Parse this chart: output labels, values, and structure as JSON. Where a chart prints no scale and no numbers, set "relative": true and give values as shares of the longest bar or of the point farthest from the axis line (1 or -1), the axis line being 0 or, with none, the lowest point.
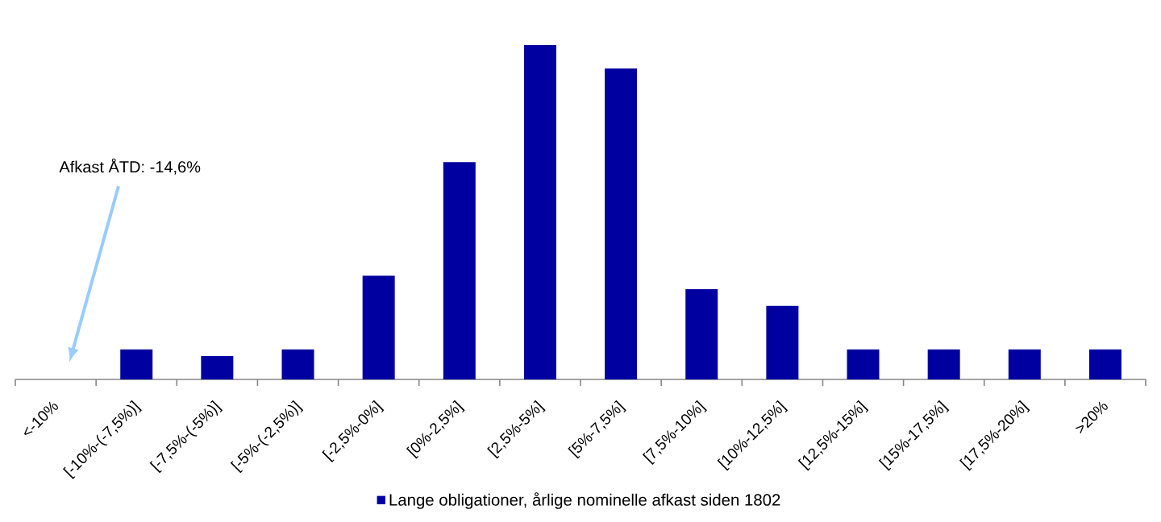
{
  "chart_data": {
    "type": "bar",
    "relative": true,
    "categories": [
      "<-10%",
      "[-10%-(-7,5%)]",
      "[-7,5%-(-5%)]",
      "[-5%-(-2,5%)]",
      "[-2,5%-0%]",
      "[0%-2,5%]",
      "[2,5%-5%]",
      "[5%-7,5%]",
      "[7,5%-10%]",
      "[10%-12,5%]",
      "[12,5%-15%]",
      "[15%-17,5%]",
      "[17,5%-20%]",
      ">20%"
    ],
    "series": [
      {
        "name": "Lange obligationer, årlige nominelle afkast siden 1802",
        "color": "#0000a0",
        "values": [
          0,
          0.09,
          0.07,
          0.09,
          0.31,
          0.65,
          1,
          0.93,
          0.27,
          0.22,
          0.09,
          0.09,
          0.09,
          0.09
        ]
      }
    ],
    "legend": "bottom",
    "annotations": [
      "Afkast ÅTD: -14,6%"
    ]
  }
}
